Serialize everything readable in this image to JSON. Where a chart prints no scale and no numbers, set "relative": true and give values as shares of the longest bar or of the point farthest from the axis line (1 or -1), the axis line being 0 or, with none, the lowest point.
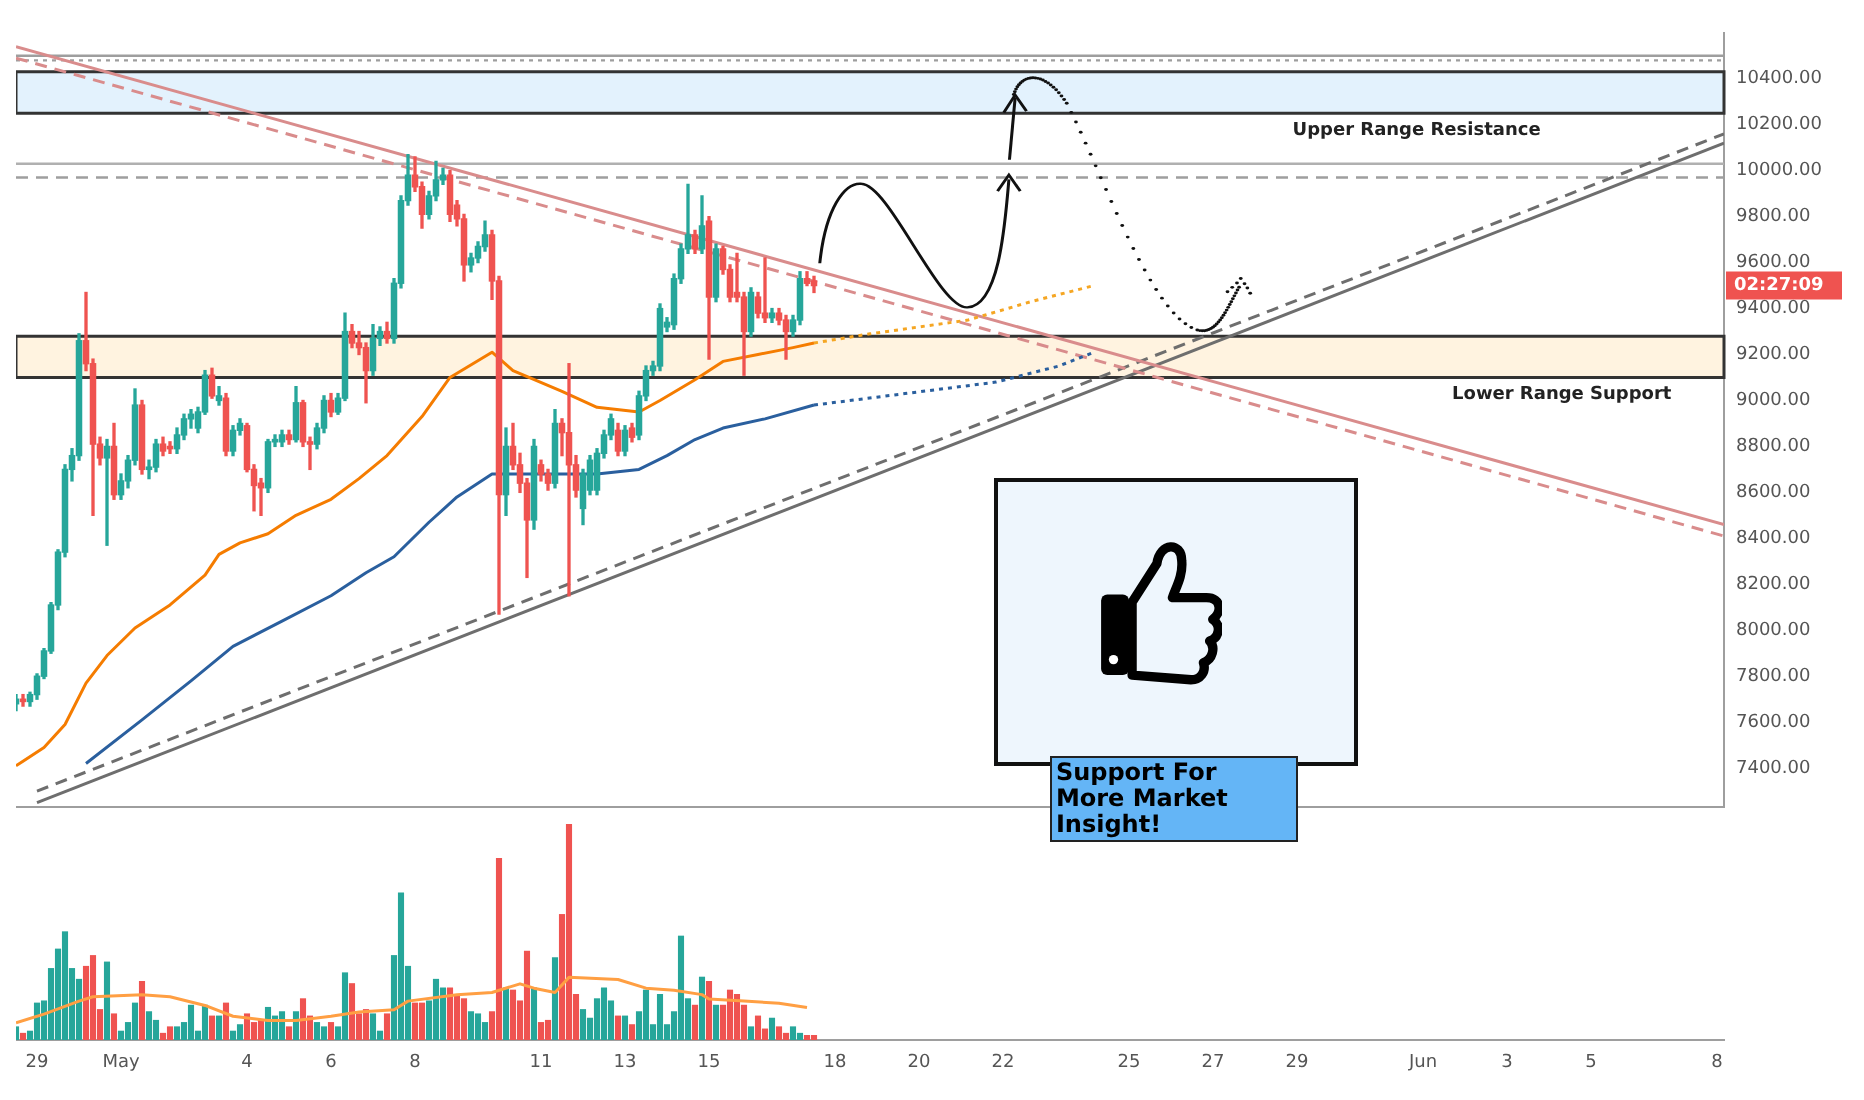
{
  "chart_data": [
    {
      "type": "candlestick",
      "x": [
        "--04-28T12:00",
        "--04-28T16:00",
        "--04-28T20:00",
        "--04-29T00:00",
        "--04-29T04:00",
        "--04-29T08:00",
        "--04-29T12:00",
        "--04-29T16:00",
        "--04-29T20:00",
        "--04-30T00:00",
        "--04-30T04:00",
        "--04-30T08:00",
        "--04-30T12:00",
        "--04-30T16:00",
        "--04-30T20:00",
        "--05-01T00:00",
        "--05-01T04:00",
        "--05-01T08:00",
        "--05-01T12:00",
        "--05-01T16:00",
        "--05-01T20:00",
        "--05-02T00:00",
        "--05-02T04:00",
        "--05-02T08:00",
        "--05-02T12:00",
        "--05-02T16:00",
        "--05-02T20:00",
        "--05-03T00:00",
        "--05-03T04:00",
        "--05-03T08:00",
        "--05-03T12:00",
        "--05-03T16:00",
        "--05-03T20:00",
        "--05-04T00:00",
        "--05-04T04:00",
        "--05-04T08:00",
        "--05-04T12:00",
        "--05-04T16:00",
        "--05-04T20:00",
        "--05-05T00:00",
        "--05-05T04:00",
        "--05-05T08:00",
        "--05-05T12:00",
        "--05-05T16:00",
        "--05-05T20:00",
        "--05-06T00:00",
        "--05-06T04:00",
        "--05-06T08:00",
        "--05-06T12:00",
        "--05-06T16:00",
        "--05-06T20:00",
        "--05-07T00:00",
        "--05-07T04:00",
        "--05-07T08:00",
        "--05-07T12:00",
        "--05-07T16:00",
        "--05-07T20:00",
        "--05-08T00:00",
        "--05-08T04:00",
        "--05-08T08:00",
        "--05-08T12:00",
        "--05-08T16:00",
        "--05-08T20:00",
        "--05-09T00:00",
        "--05-09T04:00",
        "--05-09T08:00",
        "--05-09T12:00",
        "--05-09T16:00",
        "--05-09T20:00",
        "--05-10T00:00",
        "--05-10T04:00",
        "--05-10T08:00",
        "--05-10T12:00",
        "--05-10T16:00",
        "--05-10T20:00",
        "--05-11T00:00",
        "--05-11T04:00",
        "--05-11T08:00",
        "--05-11T12:00",
        "--05-11T16:00",
        "--05-11T20:00",
        "--05-12T00:00",
        "--05-12T04:00",
        "--05-12T08:00",
        "--05-12T12:00",
        "--05-12T16:00",
        "--05-12T20:00",
        "--05-13T00:00",
        "--05-13T04:00",
        "--05-13T08:00",
        "--05-13T12:00",
        "--05-13T16:00",
        "--05-13T20:00",
        "--05-14T00:00",
        "--05-14T04:00",
        "--05-14T08:00",
        "--05-14T12:00",
        "--05-14T16:00",
        "--05-14T20:00",
        "--05-15T00:00",
        "--05-15T04:00",
        "--05-15T08:00",
        "--05-15T12:00",
        "--05-15T16:00",
        "--05-15T20:00",
        "--05-16T00:00",
        "--05-16T04:00",
        "--05-16T08:00",
        "--05-16T12:00",
        "--05-16T16:00",
        "--05-16T20:00",
        "--05-17T00:00",
        "--05-17T04:00",
        "--05-17T08:00",
        "--05-17T12:00"
      ],
      "ohlc": [
        [
          7680,
          7720,
          7650,
          7700
        ],
        [
          7700,
          7720,
          7670,
          7690
        ],
        [
          7690,
          7730,
          7670,
          7720
        ],
        [
          7720,
          7810,
          7700,
          7800
        ],
        [
          7800,
          7920,
          7790,
          7910
        ],
        [
          7910,
          8120,
          7900,
          8110
        ],
        [
          8110,
          8350,
          8090,
          8340
        ],
        [
          8340,
          8720,
          8320,
          8700
        ],
        [
          8700,
          8790,
          8650,
          8760
        ],
        [
          8760,
          9290,
          8740,
          9260
        ],
        [
          9260,
          9470,
          9130,
          9160
        ],
        [
          9160,
          9180,
          8500,
          8810
        ],
        [
          8810,
          8840,
          8720,
          8750
        ],
        [
          8750,
          8830,
          8370,
          8800
        ],
        [
          8800,
          8900,
          8570,
          8590
        ],
        [
          8590,
          8680,
          8570,
          8650
        ],
        [
          8650,
          8760,
          8620,
          8740
        ],
        [
          8740,
          9050,
          8720,
          8980
        ],
        [
          8980,
          9000,
          8680,
          8700
        ],
        [
          8700,
          8740,
          8660,
          8710
        ],
        [
          8710,
          8830,
          8690,
          8810
        ],
        [
          8810,
          8840,
          8760,
          8780
        ],
        [
          8800,
          8820,
          8770,
          8790
        ],
        [
          8790,
          8880,
          8770,
          8850
        ],
        [
          8850,
          8940,
          8830,
          8920
        ],
        [
          8920,
          8960,
          8880,
          8940
        ],
        [
          8880,
          8970,
          8860,
          8950
        ],
        [
          8950,
          9130,
          8940,
          9110
        ],
        [
          9110,
          9140,
          9010,
          9020
        ],
        [
          9000,
          9060,
          8980,
          9020
        ],
        [
          9010,
          9030,
          8760,
          8780
        ],
        [
          8780,
          8890,
          8760,
          8870
        ],
        [
          8870,
          8920,
          8850,
          8900
        ],
        [
          8890,
          8900,
          8690,
          8700
        ],
        [
          8700,
          8720,
          8520,
          8630
        ],
        [
          8640,
          8660,
          8500,
          8620
        ],
        [
          8620,
          8830,
          8600,
          8820
        ],
        [
          8820,
          8850,
          8800,
          8830
        ],
        [
          8820,
          8870,
          8800,
          8850
        ],
        [
          8850,
          8870,
          8810,
          8830
        ],
        [
          8830,
          9060,
          8820,
          8990
        ],
        [
          8990,
          9000,
          8800,
          8820
        ],
        [
          8820,
          8840,
          8700,
          8810
        ],
        [
          8810,
          8900,
          8790,
          8880
        ],
        [
          8880,
          9020,
          8860,
          9000
        ],
        [
          9000,
          9030,
          8930,
          8950
        ],
        [
          8950,
          9030,
          8940,
          9010
        ],
        [
          9010,
          9380,
          9000,
          9300
        ],
        [
          9300,
          9330,
          9230,
          9250
        ],
        [
          9250,
          9300,
          9200,
          9230
        ],
        [
          9230,
          9250,
          8990,
          9130
        ],
        [
          9130,
          9330,
          9110,
          9270
        ],
        [
          9270,
          9320,
          9240,
          9300
        ],
        [
          9300,
          9340,
          9250,
          9270
        ],
        [
          9270,
          9530,
          9250,
          9510
        ],
        [
          9510,
          9890,
          9490,
          9870
        ],
        [
          9870,
          10070,
          9850,
          9980
        ],
        [
          9980,
          10060,
          9910,
          9930
        ],
        [
          9930,
          9950,
          9750,
          9810
        ],
        [
          9810,
          9910,
          9790,
          9890
        ],
        [
          9890,
          10040,
          9870,
          9960
        ],
        [
          9960,
          10010,
          9940,
          9980
        ],
        [
          9980,
          10000,
          9780,
          9810
        ],
        [
          9850,
          9870,
          9760,
          9790
        ],
        [
          9790,
          9810,
          9520,
          9590
        ],
        [
          9590,
          9640,
          9560,
          9620
        ],
        [
          9620,
          9690,
          9600,
          9670
        ],
        [
          9670,
          9780,
          9650,
          9720
        ],
        [
          9720,
          9740,
          9440,
          9520
        ],
        [
          9520,
          9540,
          8070,
          8590
        ],
        [
          8590,
          8880,
          8500,
          8800
        ],
        [
          8800,
          8900,
          8700,
          8720
        ],
        [
          8720,
          8770,
          8600,
          8640
        ],
        [
          8640,
          8660,
          8230,
          8480
        ],
        [
          8480,
          8830,
          8440,
          8800
        ],
        [
          8720,
          8740,
          8650,
          8680
        ],
        [
          8680,
          8700,
          8610,
          8640
        ],
        [
          8640,
          8960,
          8620,
          8900
        ],
        [
          8900,
          8920,
          8760,
          8860
        ],
        [
          8860,
          9160,
          8150,
          8720
        ],
        [
          8720,
          8760,
          8580,
          8610
        ],
        [
          8530,
          8700,
          8460,
          8680
        ],
        [
          8610,
          8760,
          8590,
          8740
        ],
        [
          8610,
          8790,
          8590,
          8770
        ],
        [
          8770,
          8870,
          8750,
          8850
        ],
        [
          8850,
          8940,
          8830,
          8920
        ],
        [
          8870,
          8900,
          8760,
          8780
        ],
        [
          8780,
          8890,
          8760,
          8870
        ],
        [
          8880,
          8900,
          8820,
          8840
        ],
        [
          8850,
          9040,
          8830,
          9020
        ],
        [
          9020,
          9150,
          9000,
          9130
        ],
        [
          9130,
          9170,
          9110,
          9150
        ],
        [
          9150,
          9420,
          9130,
          9400
        ],
        [
          9320,
          9360,
          9300,
          9340
        ],
        [
          9330,
          9550,
          9310,
          9530
        ],
        [
          9530,
          9680,
          9510,
          9660
        ],
        [
          9660,
          9940,
          9640,
          9720
        ],
        [
          9720,
          9740,
          9640,
          9660
        ],
        [
          9660,
          9890,
          9640,
          9760
        ],
        [
          9780,
          9800,
          9180,
          9450
        ],
        [
          9450,
          9680,
          9430,
          9660
        ],
        [
          9660,
          9670,
          9550,
          9570
        ],
        [
          9570,
          9590,
          9430,
          9450
        ],
        [
          9470,
          9640,
          9430,
          9450
        ],
        [
          9450,
          9470,
          9110,
          9300
        ],
        [
          9300,
          9490,
          9280,
          9470
        ],
        [
          9450,
          9470,
          9360,
          9380
        ],
        [
          9380,
          9620,
          9340,
          9360
        ],
        [
          9360,
          9400,
          9340,
          9380
        ],
        [
          9380,
          9400,
          9330,
          9350
        ],
        [
          9350,
          9370,
          9180,
          9300
        ],
        [
          9300,
          9370,
          9280,
          9350
        ],
        [
          9350,
          9560,
          9330,
          9530
        ],
        [
          9530,
          9560,
          9500,
          9510
        ],
        [
          9520,
          9540,
          9470,
          9500
        ]
      ],
      "colors": [
        "#26a69a",
        "#ef5350",
        "#26a69a",
        "#26a69a",
        "#26a69a",
        "#26a69a",
        "#26a69a",
        "#26a69a",
        "#26a69a",
        "#26a69a",
        "#ef5350",
        "#ef5350",
        "#ef5350",
        "#26a69a",
        "#ef5350",
        "#26a69a",
        "#26a69a",
        "#26a69a",
        "#ef5350",
        "#26a69a",
        "#26a69a",
        "#ef5350",
        "#ef5350",
        "#26a69a",
        "#26a69a",
        "#26a69a",
        "#26a69a",
        "#26a69a",
        "#ef5350",
        "#26a69a",
        "#ef5350",
        "#26a69a",
        "#26a69a",
        "#ef5350",
        "#ef5350",
        "#ef5350",
        "#26a69a",
        "#26a69a",
        "#26a69a",
        "#ef5350",
        "#26a69a",
        "#ef5350",
        "#ef5350",
        "#26a69a",
        "#26a69a",
        "#ef5350",
        "#26a69a",
        "#26a69a",
        "#ef5350",
        "#ef5350",
        "#ef5350",
        "#26a69a",
        "#26a69a",
        "#ef5350",
        "#26a69a",
        "#26a69a",
        "#26a69a",
        "#ef5350",
        "#ef5350",
        "#26a69a",
        "#26a69a",
        "#26a69a",
        "#ef5350",
        "#ef5350",
        "#ef5350",
        "#26a69a",
        "#26a69a",
        "#26a69a",
        "#ef5350",
        "#ef5350",
        "#26a69a",
        "#ef5350",
        "#ef5350",
        "#ef5350",
        "#26a69a",
        "#ef5350",
        "#ef5350",
        "#26a69a",
        "#ef5350",
        "#ef5350",
        "#ef5350",
        "#26a69a",
        "#26a69a",
        "#26a69a",
        "#26a69a",
        "#26a69a",
        "#ef5350",
        "#26a69a",
        "#ef5350",
        "#26a69a",
        "#26a69a",
        "#26a69a",
        "#26a69a",
        "#26a69a",
        "#26a69a",
        "#26a69a",
        "#26a69a",
        "#ef5350",
        "#26a69a",
        "#ef5350",
        "#26a69a",
        "#ef5350",
        "#ef5350",
        "#ef5350",
        "#ef5350",
        "#26a69a",
        "#ef5350",
        "#ef5350",
        "#26a69a",
        "#ef5350",
        "#ef5350",
        "#26a69a",
        "#26a69a",
        "#ef5350",
        "#ef5350"
      ],
      "series": [
        {
          "type": "line",
          "color": "#f57c00",
          "x": [
            "--04-28T12:00",
            "--04-29T04:00",
            "--04-29T16:00",
            "--04-30T04:00",
            "--04-30T16:00",
            "--05-01T08:00",
            "--05-02T04:00",
            "--05-03T00:00",
            "--05-03T08:00",
            "--05-03T20:00",
            "--05-04T12:00",
            "--05-05T04:00",
            "--05-06T00:00",
            "--05-06T16:00",
            "--05-07T08:00",
            "--05-08T04:00",
            "--05-08T20:00",
            "--05-09T20:00",
            "--05-10T08:00",
            "--05-11T12:00",
            "--05-12T08:00",
            "--05-13T08:00",
            "--05-13T20:00",
            "--05-14T16:00",
            "--05-15T08:00",
            "--05-16T04:00",
            "--05-17T00:00",
            "--05-17T12:00"
          ],
          "values": [
            7410,
            7490,
            7590,
            7770,
            7890,
            8010,
            8110,
            8240,
            8330,
            8380,
            8420,
            8500,
            8570,
            8660,
            8760,
            8930,
            9100,
            9210,
            9130,
            9040,
            8970,
            8950,
            9000,
            9090,
            9170,
            9200,
            9230,
            9250
          ]
        },
        {
          "type": "line",
          "color": "#f5a623",
          "line_style": "dotted",
          "x": [
            "--05-17T12:00",
            "--05-18T20:00",
            "--05-21T04:00",
            "--05-22T16:00",
            "--05-24T04:00"
          ],
          "values": [
            9250,
            9290,
            9350,
            9430,
            9500
          ]
        },
        {
          "type": "line",
          "color": "#2a5f9e",
          "x": [
            "--04-30T04:00",
            "--05-01T12:00",
            "--05-02T16:00",
            "--05-03T16:00",
            "--05-04T20:00",
            "--05-06T00:00",
            "--05-06T20:00",
            "--05-07T12:00",
            "--05-08T08:00",
            "--05-09T00:00",
            "--05-09T20:00",
            "--05-11T04:00",
            "--05-12T08:00",
            "--05-13T08:00",
            "--05-14T00:00",
            "--05-14T16:00",
            "--05-15T08:00",
            "--05-16T08:00",
            "--05-17T12:00"
          ],
          "values": [
            7420,
            7610,
            7780,
            7930,
            8040,
            8150,
            8250,
            8320,
            8470,
            8580,
            8680,
            8680,
            8680,
            8700,
            8760,
            8830,
            8880,
            8920,
            8980
          ]
        },
        {
          "type": "line",
          "color": "#2a5f9e",
          "line_style": "dotted",
          "x": [
            "--05-17T12:00",
            "--05-19T16:00",
            "--05-21T20:00",
            "--05-23T08:00",
            "--05-24T04:00"
          ],
          "values": [
            8980,
            9030,
            9080,
            9150,
            9210
          ]
        },
        {
          "type": "line",
          "color": "#d98c8c",
          "x": [
            "--04-28T12:00",
            "--06-08T04:00"
          ],
          "values": [
            10540,
            8460
          ]
        },
        {
          "type": "line",
          "color": "#d98c8c",
          "line_style": "dashed",
          "x": [
            "--04-28T12:00",
            "--06-08T04:00"
          ],
          "values": [
            10490,
            8410
          ]
        },
        {
          "type": "line",
          "color": "#6e6e6e",
          "x": [
            "--04-29T00:00",
            "--06-08T04:00"
          ],
          "values": [
            7250,
            10120
          ]
        },
        {
          "type": "line",
          "color": "#6e6e6e",
          "line_style": "dashed",
          "x": [
            "--04-29T00:00",
            "--06-08T04:00"
          ],
          "values": [
            7300,
            10160
          ]
        }
      ],
      "xlim": [
        "--04-28T12:00",
        "--06-08T04:00"
      ],
      "tick_labels": "y",
      "ylim": [
        7230,
        10600
      ],
      "yticks": [
        {
          "value": 7400,
          "label": "7400.00"
        },
        {
          "value": 7600,
          "label": "7600.00"
        },
        {
          "value": 7800,
          "label": "7800.00"
        },
        {
          "value": 8000,
          "label": "8000.00"
        },
        {
          "value": 8200,
          "label": "8200.00"
        },
        {
          "value": 8400,
          "label": "8400.00"
        },
        {
          "value": 8600,
          "label": "8600.00"
        },
        {
          "value": 8800,
          "label": "8800.00"
        },
        {
          "value": 9000,
          "label": "9000.00"
        },
        {
          "value": 9200,
          "label": "9200.00"
        },
        {
          "value": 9400,
          "label": "9400.00"
        },
        {
          "value": 9600,
          "label": "9600.00"
        },
        {
          "value": 9800,
          "label": "9800.00"
        },
        {
          "value": 10000,
          "label": "10000.00"
        },
        {
          "value": 10200,
          "label": "10200.00"
        },
        {
          "value": 10400,
          "label": "10400.00"
        }
      ],
      "bands": [
        {
          "axis": "y",
          "from": 10250,
          "to": 10430,
          "label": "Upper Range Resistance",
          "color": "#e3f2fd"
        },
        {
          "axis": "y",
          "from": 9100,
          "to": 9280,
          "label": "Lower Range Support",
          "color": "#fff3e0"
        }
      ],
      "ref_lines": [
        {
          "axis": "y",
          "value": 10500,
          "color": "#9e9e9e"
        },
        {
          "axis": "y",
          "value": 10480,
          "color": "#9e9e9e",
          "line_style": "dotted"
        },
        {
          "axis": "y",
          "value": 10030,
          "color": "#b0b0b0"
        },
        {
          "axis": "y",
          "value": 9970,
          "color": "#9e9e9e",
          "line_style": "dashed"
        }
      ],
      "annotations": [
        "02:27:09",
        "Support For More Market Insight!"
      ]
    },
    {
      "type": "bar",
      "relative": true,
      "tick_labels": "x",
      "xticks": [
        {
          "value": "--04-29",
          "label": "29"
        },
        {
          "value": "--05-01",
          "label": "May"
        },
        {
          "value": "--05-04",
          "label": "4"
        },
        {
          "value": "--05-06",
          "label": "6"
        },
        {
          "value": "--05-08",
          "label": "8"
        },
        {
          "value": "--05-11",
          "label": "11"
        },
        {
          "value": "--05-13",
          "label": "13"
        },
        {
          "value": "--05-15",
          "label": "15"
        },
        {
          "value": "--05-18",
          "label": "18"
        },
        {
          "value": "--05-20",
          "label": "20"
        },
        {
          "value": "--05-22",
          "label": "22"
        },
        {
          "value": "--05-25",
          "label": "25"
        },
        {
          "value": "--05-27",
          "label": "27"
        },
        {
          "value": "--05-29",
          "label": "29"
        },
        {
          "value": "--06-01",
          "label": "Jun"
        },
        {
          "value": "--06-03",
          "label": "3"
        },
        {
          "value": "--06-05",
          "label": "5"
        },
        {
          "value": "--06-08",
          "label": "8"
        }
      ],
      "x": [
        "--04-28T12:00",
        "--04-28T16:00",
        "--04-28T20:00",
        "--04-29T00:00",
        "--04-29T04:00",
        "--04-29T08:00",
        "--04-29T12:00",
        "--04-29T16:00",
        "--04-29T20:00",
        "--04-30T00:00",
        "--04-30T04:00",
        "--04-30T08:00",
        "--04-30T12:00",
        "--04-30T16:00",
        "--04-30T20:00",
        "--05-01T00:00",
        "--05-01T04:00",
        "--05-01T08:00",
        "--05-01T12:00",
        "--05-01T16:00",
        "--05-01T20:00",
        "--05-02T00:00",
        "--05-02T04:00",
        "--05-02T08:00",
        "--05-02T12:00",
        "--05-02T16:00",
        "--05-02T20:00",
        "--05-03T00:00",
        "--05-03T04:00",
        "--05-03T08:00",
        "--05-03T12:00",
        "--05-03T16:00",
        "--05-03T20:00",
        "--05-04T00:00",
        "--05-04T04:00",
        "--05-04T08:00",
        "--05-04T12:00",
        "--05-04T16:00",
        "--05-04T20:00",
        "--05-05T00:00",
        "--05-05T04:00",
        "--05-05T08:00",
        "--05-05T12:00",
        "--05-05T16:00",
        "--05-05T20:00",
        "--05-06T00:00",
        "--05-06T04:00",
        "--05-06T08:00",
        "--05-06T12:00",
        "--05-06T16:00",
        "--05-06T20:00",
        "--05-07T00:00",
        "--05-07T04:00",
        "--05-07T08:00",
        "--05-07T12:00",
        "--05-07T16:00",
        "--05-07T20:00",
        "--05-08T00:00",
        "--05-08T04:00",
        "--05-08T08:00",
        "--05-08T12:00",
        "--05-08T16:00",
        "--05-08T20:00",
        "--05-09T00:00",
        "--05-09T04:00",
        "--05-09T08:00",
        "--05-09T12:00",
        "--05-09T16:00",
        "--05-09T20:00",
        "--05-10T00:00",
        "--05-10T04:00",
        "--05-10T08:00",
        "--05-10T12:00",
        "--05-10T16:00",
        "--05-10T20:00",
        "--05-11T00:00",
        "--05-11T04:00",
        "--05-11T08:00",
        "--05-11T12:00",
        "--05-11T16:00",
        "--05-11T20:00",
        "--05-12T00:00",
        "--05-12T04:00",
        "--05-12T08:00",
        "--05-12T12:00",
        "--05-12T16:00",
        "--05-12T20:00",
        "--05-13T00:00",
        "--05-13T04:00",
        "--05-13T08:00",
        "--05-13T12:00",
        "--05-13T16:00",
        "--05-13T20:00",
        "--05-14T00:00",
        "--05-14T04:00",
        "--05-14T08:00",
        "--05-14T12:00",
        "--05-14T16:00",
        "--05-14T20:00",
        "--05-15T00:00",
        "--05-15T04:00",
        "--05-15T08:00",
        "--05-15T12:00",
        "--05-15T16:00",
        "--05-15T20:00",
        "--05-16T00:00",
        "--05-16T04:00",
        "--05-16T08:00",
        "--05-16T12:00",
        "--05-16T16:00",
        "--05-16T20:00",
        "--05-17T00:00",
        "--05-17T04:00",
        "--05-17T08:00",
        "--05-17T12:00"
      ],
      "xlim": [
        "--04-28T12:00",
        "--06-08T04:00"
      ],
      "series": [
        {
          "type": "bar",
          "values": [
            0.06,
            0.03,
            0.04,
            0.17,
            0.18,
            0.33,
            0.42,
            0.5,
            0.33,
            0.28,
            0.34,
            0.39,
            0.14,
            0.36,
            0.12,
            0.04,
            0.08,
            0.17,
            0.27,
            0.13,
            0.09,
            0.03,
            0.06,
            0.06,
            0.08,
            0.16,
            0.04,
            0.16,
            0.11,
            0.11,
            0.17,
            0.04,
            0.07,
            0.12,
            0.08,
            0.09,
            0.15,
            0.11,
            0.13,
            0.06,
            0.13,
            0.19,
            0.11,
            0.08,
            0.06,
            0.08,
            0.06,
            0.31,
            0.26,
            0.12,
            0.14,
            0.12,
            0.04,
            0.12,
            0.39,
            0.68,
            0.34,
            0.17,
            0.17,
            0.18,
            0.28,
            0.24,
            0.24,
            0.21,
            0.19,
            0.13,
            0.12,
            0.08,
            0.13,
            0.84,
            0.24,
            0.23,
            0.18,
            0.41,
            0.24,
            0.08,
            0.09,
            0.38,
            0.58,
            1,
            0.21,
            0.14,
            0.1,
            0.19,
            0.24,
            0.18,
            0.11,
            0.11,
            0.07,
            0.13,
            0.23,
            0.07,
            0.21,
            0.07,
            0.13,
            0.48,
            0.19,
            0.16,
            0.29,
            0.27,
            0.16,
            0.16,
            0.23,
            0.21,
            0.16,
            0.06,
            0.11,
            0.05,
            0.1,
            0.06,
            0.03,
            0.06,
            0.03,
            0.02,
            0.02
          ],
          "colors": [
            "#26a69a",
            "#ef5350",
            "#26a69a",
            "#26a69a",
            "#26a69a",
            "#26a69a",
            "#26a69a",
            "#26a69a",
            "#26a69a",
            "#26a69a",
            "#ef5350",
            "#ef5350",
            "#ef5350",
            "#26a69a",
            "#ef5350",
            "#26a69a",
            "#26a69a",
            "#26a69a",
            "#ef5350",
            "#26a69a",
            "#26a69a",
            "#ef5350",
            "#ef5350",
            "#26a69a",
            "#26a69a",
            "#26a69a",
            "#26a69a",
            "#26a69a",
            "#ef5350",
            "#26a69a",
            "#ef5350",
            "#26a69a",
            "#26a69a",
            "#ef5350",
            "#ef5350",
            "#ef5350",
            "#26a69a",
            "#26a69a",
            "#26a69a",
            "#ef5350",
            "#26a69a",
            "#ef5350",
            "#ef5350",
            "#26a69a",
            "#26a69a",
            "#ef5350",
            "#26a69a",
            "#26a69a",
            "#ef5350",
            "#ef5350",
            "#ef5350",
            "#26a69a",
            "#26a69a",
            "#ef5350",
            "#26a69a",
            "#26a69a",
            "#26a69a",
            "#ef5350",
            "#ef5350",
            "#26a69a",
            "#26a69a",
            "#26a69a",
            "#ef5350",
            "#ef5350",
            "#ef5350",
            "#26a69a",
            "#26a69a",
            "#26a69a",
            "#ef5350",
            "#ef5350",
            "#26a69a",
            "#ef5350",
            "#ef5350",
            "#ef5350",
            "#26a69a",
            "#ef5350",
            "#ef5350",
            "#26a69a",
            "#ef5350",
            "#ef5350",
            "#ef5350",
            "#26a69a",
            "#26a69a",
            "#26a69a",
            "#26a69a",
            "#26a69a",
            "#ef5350",
            "#26a69a",
            "#ef5350",
            "#26a69a",
            "#26a69a",
            "#26a69a",
            "#26a69a",
            "#26a69a",
            "#26a69a",
            "#26a69a",
            "#26a69a",
            "#ef5350",
            "#26a69a",
            "#ef5350",
            "#26a69a",
            "#ef5350",
            "#ef5350",
            "#ef5350",
            "#ef5350",
            "#26a69a",
            "#ef5350",
            "#ef5350",
            "#26a69a",
            "#ef5350",
            "#ef5350",
            "#26a69a",
            "#26a69a",
            "#ef5350",
            "#ef5350"
          ]
        },
        {
          "type": "line",
          "color": "#ff9f43",
          "x": [
            "--04-28T12:00",
            "--04-29T04:00",
            "--04-30T00:00",
            "--04-30T08:00",
            "--05-01T12:00",
            "--05-02T04:00",
            "--05-03T00:00",
            "--05-03T16:00",
            "--05-04T12:00",
            "--05-05T04:00",
            "--05-06T00:00",
            "--05-06T16:00",
            "--05-07T12:00",
            "--05-07T20:00",
            "--05-09T00:00",
            "--05-09T20:00",
            "--05-10T12:00",
            "--05-10T20:00",
            "--05-11T08:00",
            "--05-11T16:00",
            "--05-12T20:00",
            "--05-13T12:00",
            "--05-14T04:00",
            "--05-14T20:00",
            "--05-15T00:00",
            "--05-15T20:00",
            "--05-16T16:00",
            "--05-17T08:00"
          ],
          "values": [
            0.08,
            0.12,
            0.18,
            0.2,
            0.21,
            0.2,
            0.16,
            0.11,
            0.09,
            0.09,
            0.11,
            0.13,
            0.14,
            0.18,
            0.21,
            0.22,
            0.26,
            0.24,
            0.22,
            0.29,
            0.28,
            0.24,
            0.23,
            0.21,
            0.19,
            0.18,
            0.17,
            0.15
          ]
        }
      ]
    }
  ]
}
